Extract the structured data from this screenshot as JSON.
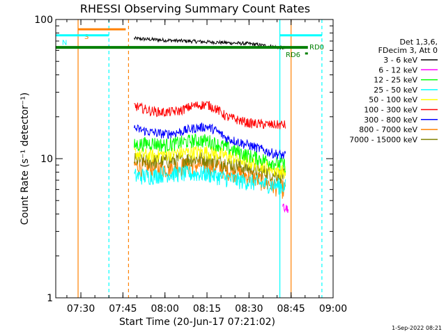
{
  "chart_data": {
    "type": "line",
    "title": "RHESSI Observing Summary Count Rates",
    "xlabel": "Start Time (20-Jun-17 07:21:02)",
    "ylabel": "Count Rate (s⁻¹ detector⁻¹)",
    "ylim": [
      1,
      100
    ],
    "y_scale": "log",
    "xlim": [
      "07:21:02",
      "09:00:00"
    ],
    "x_ticks": [
      "07:30",
      "07:45",
      "08:00",
      "08:15",
      "08:30",
      "08:45",
      "09:00"
    ],
    "y_ticks": [
      "1",
      "10",
      "100"
    ],
    "grid": false,
    "legend_position": "right",
    "legend_header": [
      "Det 1,3,6,",
      "FDecim 3, Att 0"
    ],
    "footer_date": "1-Sep-2022 08:21",
    "interval_bars": [
      {
        "label": "S",
        "color": "#ff8000",
        "start": "07:29",
        "end": "07:46",
        "level": 85
      },
      {
        "label": "N",
        "color": "#00ffff",
        "start": "07:21",
        "end": "07:40",
        "level": 77
      },
      {
        "label": "",
        "color": "#00ffff",
        "start": "08:41",
        "end": "08:56",
        "level": 77
      }
    ],
    "vertical_lines": [
      {
        "time": "07:29",
        "color": "#ff8000",
        "style": "solid"
      },
      {
        "time": "07:40",
        "color": "#00ffff",
        "style": "dashed"
      },
      {
        "time": "07:47",
        "color": "#ff8000",
        "style": "dashed"
      },
      {
        "time": "08:41",
        "color": "#00ffff",
        "style": "solid"
      },
      {
        "time": "08:45",
        "color": "#ff8000",
        "style": "solid"
      },
      {
        "time": "08:56",
        "color": "#00ffff",
        "style": "dashed"
      }
    ],
    "annotations": [
      {
        "text": "RD0",
        "color": "#007f00"
      },
      {
        "text": "RD6",
        "color": "#007f00"
      }
    ],
    "series": [
      {
        "name": "3 - 6 keV",
        "color": "#000000",
        "x": [
          "07:49",
          "08:00",
          "08:15",
          "08:30",
          "08:38",
          "08:43"
        ],
        "values": [
          73,
          71,
          69,
          67,
          64,
          62
        ]
      },
      {
        "name": "6 - 12 keV",
        "color": "#ff00ff",
        "x": [
          "08:42",
          "08:43",
          "08:44"
        ],
        "values": [
          4.5,
          4.3,
          4.4
        ]
      },
      {
        "name": "12 - 25 keV",
        "color": "#00ff00",
        "x": [
          "07:49",
          "07:55",
          "08:00",
          "08:10",
          "08:15",
          "08:22",
          "08:30",
          "08:38",
          "08:43"
        ],
        "values": [
          12.5,
          13,
          12.5,
          13.5,
          13.5,
          12,
          10.5,
          9.5,
          9
        ]
      },
      {
        "name": "25 - 50 keV",
        "color": "#00ffff",
        "x": [
          "07:49",
          "07:55",
          "08:00",
          "08:10",
          "08:15",
          "08:22",
          "08:30",
          "08:38",
          "08:43"
        ],
        "values": [
          7.5,
          7.5,
          7.8,
          7.8,
          7.8,
          7.2,
          6.8,
          6.5,
          6.3
        ]
      },
      {
        "name": "50 - 100 keV",
        "color": "#ffff00",
        "x": [
          "07:49",
          "07:55",
          "08:00",
          "08:10",
          "08:15",
          "08:22",
          "08:30",
          "08:38",
          "08:43"
        ],
        "values": [
          11,
          10.5,
          10.8,
          11.2,
          11.2,
          10.5,
          9.5,
          8.5,
          8
        ]
      },
      {
        "name": "100 - 300 keV",
        "color": "#ff0000",
        "x": [
          "07:49",
          "07:55",
          "08:00",
          "08:05",
          "08:10",
          "08:15",
          "08:18",
          "08:22",
          "08:30",
          "08:38",
          "08:43"
        ],
        "values": [
          24,
          22,
          21.5,
          22,
          24,
          24.5,
          23,
          20,
          18,
          17.5,
          17.5
        ]
      },
      {
        "name": "300 - 800 keV",
        "color": "#0000ff",
        "x": [
          "07:49",
          "07:55",
          "08:00",
          "08:05",
          "08:10",
          "08:15",
          "08:18",
          "08:22",
          "08:30",
          "08:38",
          "08:43"
        ],
        "values": [
          16.5,
          15.5,
          15,
          15.5,
          16.5,
          17,
          16,
          14,
          12.5,
          11,
          10.5
        ]
      },
      {
        "name": "800 - 7000 keV",
        "color": "#ff8000",
        "x": [
          "07:49",
          "07:55",
          "08:00",
          "08:10",
          "08:15",
          "08:22",
          "08:30",
          "08:38",
          "08:43"
        ],
        "values": [
          9,
          8.5,
          8.5,
          9,
          9,
          8.3,
          7.5,
          6.5,
          6
        ]
      },
      {
        "name": "7000 - 15000 keV",
        "color": "#808000",
        "x": [
          "07:49",
          "07:55",
          "08:00",
          "08:10",
          "08:15",
          "08:22",
          "08:30",
          "08:38",
          "08:43"
        ],
        "values": [
          9.8,
          9.5,
          9.6,
          10,
          10,
          9.3,
          8.5,
          7.8,
          7.5
        ]
      }
    ],
    "rd_lines": [
      {
        "name": "RD0",
        "color": "#007f00",
        "x": [
          "07:21",
          "08:51"
        ],
        "values": [
          63,
          63
        ]
      },
      {
        "name": "RD6",
        "color": "#007f00",
        "x": [
          "08:50",
          "08:51"
        ],
        "values": [
          57,
          57
        ]
      }
    ]
  }
}
